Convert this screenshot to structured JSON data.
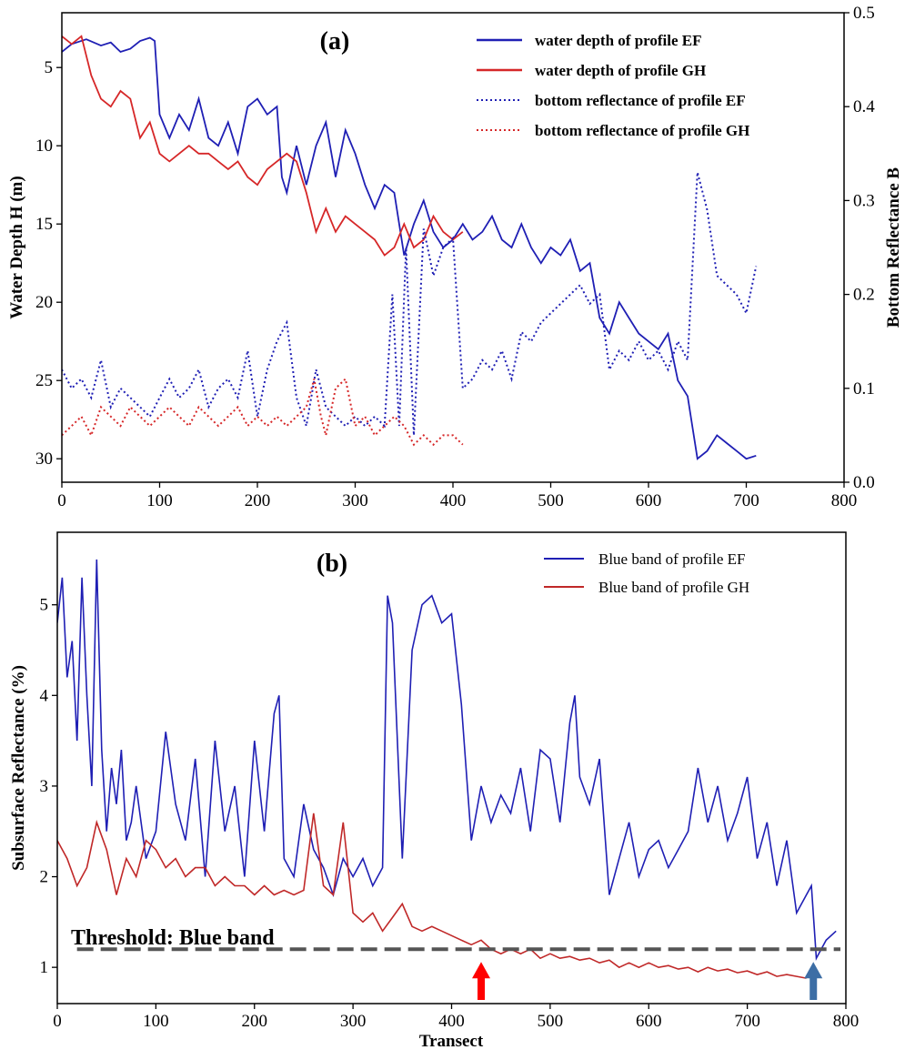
{
  "chart_data": [
    {
      "type": "line",
      "panel_label": "(a)",
      "title": "",
      "xlabel": "",
      "ylabel": "Water Depth H (m)",
      "y2label": "Bottom Reflectance B",
      "xlim": [
        0,
        800
      ],
      "ylim": [
        31.5,
        1.5
      ],
      "y_inverted": true,
      "y2lim": [
        0.0,
        0.5
      ],
      "x_ticks": [
        "0",
        "100",
        "200",
        "300",
        "400",
        "500",
        "600",
        "700",
        "800"
      ],
      "y_ticks": [
        "5",
        "10",
        "15",
        "20",
        "25",
        "30"
      ],
      "y2_ticks": [
        "0.0",
        "0.1",
        "0.2",
        "0.3",
        "0.4",
        "0.5"
      ],
      "legend_position": "top-right",
      "series": [
        {
          "name": "water depth of profile EF",
          "axis": "left",
          "style": "solid",
          "color": "#1f1fb4",
          "x": [
            0,
            10,
            25,
            40,
            50,
            60,
            70,
            80,
            90,
            95,
            100,
            110,
            120,
            130,
            140,
            150,
            160,
            170,
            180,
            190,
            200,
            210,
            220,
            225,
            230,
            240,
            250,
            260,
            270,
            280,
            290,
            300,
            310,
            320,
            330,
            340,
            350,
            360,
            370,
            380,
            390,
            400,
            410,
            420,
            430,
            440,
            450,
            460,
            470,
            480,
            490,
            500,
            510,
            520,
            530,
            540,
            550,
            560,
            570,
            580,
            590,
            600,
            610,
            620,
            630,
            640,
            650,
            660,
            670,
            680,
            690,
            700,
            710
          ],
          "values": [
            4.0,
            3.5,
            3.2,
            3.6,
            3.4,
            4.0,
            3.8,
            3.3,
            3.1,
            3.3,
            8.0,
            9.5,
            8.0,
            9.0,
            7.0,
            9.5,
            10.0,
            8.5,
            10.5,
            7.5,
            7.0,
            8.0,
            7.5,
            12.0,
            13.0,
            10.0,
            12.5,
            10.0,
            8.5,
            12.0,
            9.0,
            10.5,
            12.5,
            14.0,
            12.5,
            13.0,
            17.0,
            15.0,
            13.5,
            15.5,
            16.5,
            16.0,
            15.0,
            16.0,
            15.5,
            14.5,
            16.0,
            16.5,
            15.0,
            16.5,
            17.5,
            16.5,
            17.0,
            16.0,
            18.0,
            17.5,
            21.0,
            22.0,
            20.0,
            21.0,
            22.0,
            22.5,
            23.0,
            22.0,
            25.0,
            26.0,
            30.0,
            29.5,
            28.5,
            29.0,
            29.5,
            30.0,
            29.8
          ]
        },
        {
          "name": "water depth of profile GH",
          "axis": "left",
          "style": "solid",
          "color": "#d62728",
          "x": [
            0,
            10,
            20,
            30,
            40,
            50,
            60,
            70,
            80,
            90,
            100,
            110,
            120,
            130,
            140,
            150,
            160,
            170,
            180,
            190,
            200,
            210,
            220,
            230,
            240,
            250,
            260,
            270,
            280,
            290,
            300,
            310,
            320,
            330,
            340,
            350,
            360,
            370,
            380,
            390,
            400,
            410
          ],
          "values": [
            3.0,
            3.5,
            3.0,
            5.5,
            7.0,
            7.5,
            6.5,
            7.0,
            9.5,
            8.5,
            10.5,
            11.0,
            10.5,
            10.0,
            10.5,
            10.5,
            11.0,
            11.5,
            11.0,
            12.0,
            12.5,
            11.5,
            11.0,
            10.5,
            11.0,
            13.0,
            15.5,
            14.0,
            15.5,
            14.5,
            15.0,
            15.5,
            16.0,
            17.0,
            16.5,
            15.0,
            16.5,
            16.0,
            14.5,
            15.5,
            16.0,
            15.5
          ]
        },
        {
          "name": "bottom reflectance of profile EF",
          "axis": "right",
          "style": "dotted",
          "color": "#1f1fb4",
          "x": [
            0,
            10,
            20,
            30,
            40,
            50,
            60,
            70,
            80,
            90,
            100,
            110,
            120,
            130,
            140,
            150,
            160,
            170,
            180,
            190,
            200,
            210,
            220,
            230,
            240,
            250,
            260,
            270,
            280,
            290,
            300,
            310,
            320,
            330,
            338,
            345,
            352,
            360,
            370,
            380,
            390,
            400,
            410,
            420,
            430,
            440,
            450,
            460,
            470,
            480,
            490,
            500,
            510,
            520,
            530,
            540,
            550,
            560,
            570,
            580,
            590,
            600,
            610,
            620,
            630,
            640,
            650,
            660,
            670,
            680,
            690,
            700,
            710
          ],
          "values": [
            0.12,
            0.1,
            0.11,
            0.09,
            0.13,
            0.08,
            0.1,
            0.09,
            0.08,
            0.07,
            0.09,
            0.11,
            0.09,
            0.1,
            0.12,
            0.08,
            0.1,
            0.11,
            0.09,
            0.14,
            0.07,
            0.12,
            0.15,
            0.17,
            0.09,
            0.06,
            0.12,
            0.08,
            0.07,
            0.06,
            0.07,
            0.06,
            0.07,
            0.06,
            0.2,
            0.06,
            0.25,
            0.05,
            0.27,
            0.22,
            0.25,
            0.26,
            0.1,
            0.11,
            0.13,
            0.12,
            0.14,
            0.11,
            0.16,
            0.15,
            0.17,
            0.18,
            0.19,
            0.2,
            0.21,
            0.19,
            0.2,
            0.12,
            0.14,
            0.13,
            0.15,
            0.13,
            0.14,
            0.12,
            0.15,
            0.13,
            0.33,
            0.29,
            0.22,
            0.21,
            0.2,
            0.18,
            0.23
          ]
        },
        {
          "name": "bottom reflectance of profile GH",
          "axis": "right",
          "style": "dotted",
          "color": "#d62728",
          "x": [
            0,
            10,
            20,
            30,
            40,
            50,
            60,
            70,
            80,
            90,
            100,
            110,
            120,
            130,
            140,
            150,
            160,
            170,
            180,
            190,
            200,
            210,
            220,
            230,
            240,
            250,
            258,
            265,
            270,
            280,
            290,
            300,
            310,
            320,
            330,
            340,
            350,
            360,
            370,
            380,
            390,
            400,
            410
          ],
          "values": [
            0.05,
            0.06,
            0.07,
            0.05,
            0.08,
            0.07,
            0.06,
            0.08,
            0.07,
            0.06,
            0.07,
            0.08,
            0.07,
            0.06,
            0.08,
            0.07,
            0.06,
            0.07,
            0.08,
            0.06,
            0.07,
            0.06,
            0.07,
            0.06,
            0.07,
            0.08,
            0.11,
            0.07,
            0.05,
            0.1,
            0.11,
            0.06,
            0.07,
            0.05,
            0.06,
            0.07,
            0.06,
            0.04,
            0.05,
            0.04,
            0.05,
            0.05,
            0.04
          ]
        }
      ]
    },
    {
      "type": "line",
      "panel_label": "(b)",
      "title": "",
      "xlabel": "Transect",
      "ylabel": "Subsurface Reflectance (%)",
      "xlim": [
        0,
        800
      ],
      "ylim": [
        0.6,
        5.8
      ],
      "x_ticks": [
        "0",
        "100",
        "200",
        "300",
        "400",
        "500",
        "600",
        "700",
        "800"
      ],
      "y_ticks": [
        "1",
        "2",
        "3",
        "4",
        "5"
      ],
      "legend_position": "top-right",
      "threshold": {
        "label": "Threshold: Blue band",
        "value": 1.2,
        "x_range": [
          20,
          800
        ],
        "color": "#555555"
      },
      "arrows": [
        {
          "name": "red-arrow",
          "x": 430,
          "color": "#ff0000"
        },
        {
          "name": "blue-arrow",
          "x": 767,
          "color": "#3d6ea5"
        }
      ],
      "series": [
        {
          "name": "Blue band of profile EF",
          "color": "#1f1fb4",
          "x": [
            0,
            5,
            10,
            15,
            20,
            25,
            30,
            35,
            40,
            45,
            50,
            55,
            60,
            65,
            70,
            75,
            80,
            90,
            100,
            110,
            120,
            130,
            140,
            150,
            160,
            170,
            180,
            190,
            200,
            210,
            220,
            225,
            230,
            240,
            250,
            260,
            270,
            280,
            290,
            300,
            310,
            320,
            330,
            335,
            340,
            350,
            360,
            370,
            380,
            390,
            400,
            410,
            420,
            430,
            440,
            450,
            460,
            470,
            480,
            490,
            500,
            510,
            520,
            525,
            530,
            540,
            550,
            560,
            570,
            580,
            590,
            600,
            610,
            620,
            630,
            640,
            650,
            660,
            670,
            680,
            690,
            700,
            710,
            720,
            730,
            740,
            750,
            760,
            765,
            770,
            780,
            790
          ],
          "values": [
            4.8,
            5.3,
            4.2,
            4.6,
            3.5,
            5.3,
            4.0,
            3.0,
            5.5,
            3.4,
            2.5,
            3.2,
            2.8,
            3.4,
            2.4,
            2.6,
            3.0,
            2.2,
            2.5,
            3.6,
            2.8,
            2.4,
            3.3,
            2.0,
            3.5,
            2.5,
            3.0,
            2.0,
            3.5,
            2.5,
            3.8,
            4.0,
            2.2,
            2.0,
            2.8,
            2.3,
            2.1,
            1.8,
            2.2,
            2.0,
            2.2,
            1.9,
            2.1,
            5.1,
            4.8,
            2.2,
            4.5,
            5.0,
            5.1,
            4.8,
            4.9,
            3.9,
            2.4,
            3.0,
            2.6,
            2.9,
            2.7,
            3.2,
            2.5,
            3.4,
            3.3,
            2.6,
            3.7,
            4.0,
            3.1,
            2.8,
            3.3,
            1.8,
            2.2,
            2.6,
            2.0,
            2.3,
            2.4,
            2.1,
            2.3,
            2.5,
            3.2,
            2.6,
            3.0,
            2.4,
            2.7,
            3.1,
            2.2,
            2.6,
            1.9,
            2.4,
            1.6,
            1.8,
            1.9,
            1.1,
            1.3,
            1.4
          ]
        },
        {
          "name": "Blue band of profile GH",
          "color": "#c02828",
          "x": [
            0,
            10,
            20,
            30,
            40,
            50,
            60,
            70,
            80,
            90,
            100,
            110,
            120,
            130,
            140,
            150,
            160,
            170,
            180,
            190,
            200,
            210,
            220,
            230,
            240,
            250,
            260,
            270,
            280,
            290,
            300,
            310,
            320,
            330,
            340,
            350,
            360,
            370,
            380,
            390,
            400,
            410,
            420,
            430,
            440,
            450,
            460,
            470,
            480,
            490,
            500,
            510,
            520,
            530,
            540,
            550,
            560,
            570,
            580,
            590,
            600,
            610,
            620,
            630,
            640,
            650,
            660,
            670,
            680,
            690,
            700,
            710,
            720,
            730,
            740,
            750,
            760
          ],
          "values": [
            2.4,
            2.2,
            1.9,
            2.1,
            2.6,
            2.3,
            1.8,
            2.2,
            2.0,
            2.4,
            2.3,
            2.1,
            2.2,
            2.0,
            2.1,
            2.1,
            1.9,
            2.0,
            1.9,
            1.9,
            1.8,
            1.9,
            1.8,
            1.85,
            1.8,
            1.85,
            2.7,
            1.9,
            1.8,
            2.6,
            1.6,
            1.5,
            1.6,
            1.4,
            1.55,
            1.7,
            1.45,
            1.4,
            1.45,
            1.4,
            1.35,
            1.3,
            1.25,
            1.3,
            1.2,
            1.15,
            1.2,
            1.15,
            1.2,
            1.1,
            1.15,
            1.1,
            1.12,
            1.08,
            1.1,
            1.05,
            1.08,
            1.0,
            1.05,
            1.0,
            1.05,
            1.0,
            1.02,
            0.98,
            1.0,
            0.95,
            1.0,
            0.96,
            0.98,
            0.94,
            0.96,
            0.92,
            0.95,
            0.9,
            0.92,
            0.9,
            0.88
          ]
        }
      ]
    }
  ]
}
